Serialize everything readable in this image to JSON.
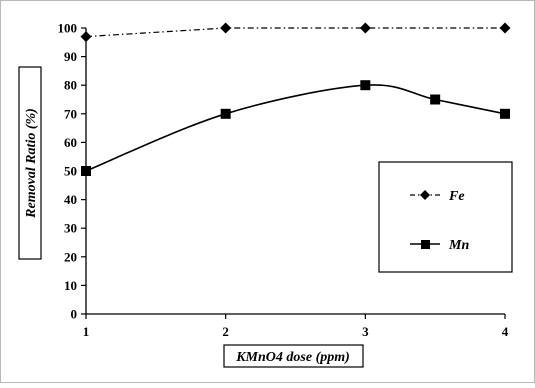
{
  "chart_data": {
    "type": "line",
    "xlabel": "KMnO4 dose (ppm)",
    "ylabel": "Removal Ratio (%)",
    "xlim": [
      1,
      4
    ],
    "ylim": [
      0,
      100
    ],
    "xticks": [
      "1",
      "2",
      "3",
      "4"
    ],
    "yticks": [
      "0",
      "10",
      "20",
      "30",
      "40",
      "50",
      "60",
      "70",
      "80",
      "90",
      "100"
    ],
    "grid": false,
    "legend_position": "right",
    "series": [
      {
        "name": "Fe",
        "marker": "diamond",
        "line_style": "dash-dot",
        "color": "#000000",
        "x": [
          1,
          2,
          3,
          4
        ],
        "y": [
          97,
          100,
          100,
          100
        ]
      },
      {
        "name": "Mn",
        "marker": "square",
        "line_style": "solid",
        "color": "#000000",
        "x": [
          1,
          2,
          3,
          3.5,
          4
        ],
        "y": [
          50,
          70,
          80,
          75,
          70
        ]
      }
    ]
  }
}
